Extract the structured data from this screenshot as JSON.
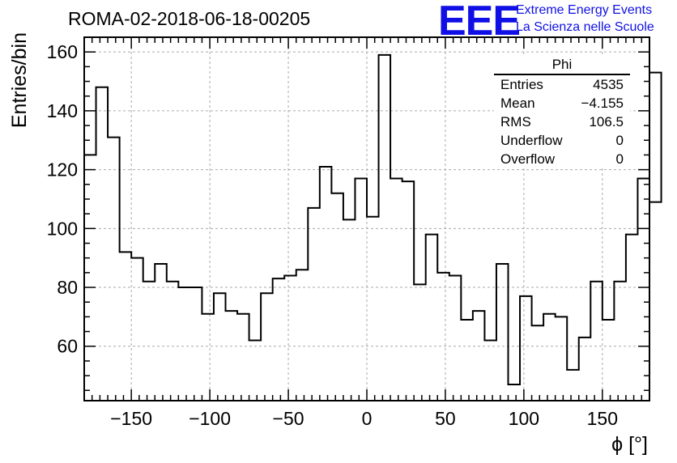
{
  "header": {
    "title": "ROMA-02-2018-06-18-00205",
    "logo_text": "EEE",
    "logo_line1": "Extreme Energy Events",
    "logo_line2": "La Scienza nelle Scuole",
    "logo_color": "#1010e6"
  },
  "stats_box": {
    "title": "Phi",
    "rows": [
      {
        "label": "Entries",
        "value": "4535"
      },
      {
        "label": "Mean",
        "value": "−4.155"
      },
      {
        "label": "RMS",
        "value": "106.5"
      },
      {
        "label": "Underflow",
        "value": "0"
      },
      {
        "label": "Overflow",
        "value": "0"
      }
    ]
  },
  "chart_data": {
    "type": "histogram",
    "title": "ROMA-02-2018-06-18-00205",
    "xlabel": "ϕ [°]",
    "ylabel": "Entries/bin",
    "xlim": [
      -180,
      180
    ],
    "ylim": [
      41.5,
      165
    ],
    "bin_width": 7.5,
    "bin_start": -180,
    "values": [
      125,
      148,
      131,
      92,
      90,
      82,
      88,
      82,
      80,
      80,
      71,
      78,
      72,
      71,
      62,
      78,
      83,
      84,
      86,
      107,
      121,
      112,
      103,
      117,
      104,
      159,
      117,
      116,
      81,
      98,
      85,
      84,
      69,
      72,
      62,
      88,
      47,
      77,
      67,
      71,
      70,
      52,
      63,
      82,
      69,
      82,
      98,
      117,
      109
    ],
    "right_edge_value": 153,
    "xticks": [
      -150,
      -100,
      -50,
      0,
      50,
      100,
      150
    ],
    "xtick_labels": [
      "−150",
      "−100",
      "−50",
      "0",
      "50",
      "100",
      "150"
    ],
    "yticks": [
      60,
      80,
      100,
      120,
      140,
      160
    ],
    "ytick_labels": [
      "60",
      "80",
      "100",
      "120",
      "140",
      "160"
    ],
    "grid": true,
    "line_color": "#000000"
  }
}
